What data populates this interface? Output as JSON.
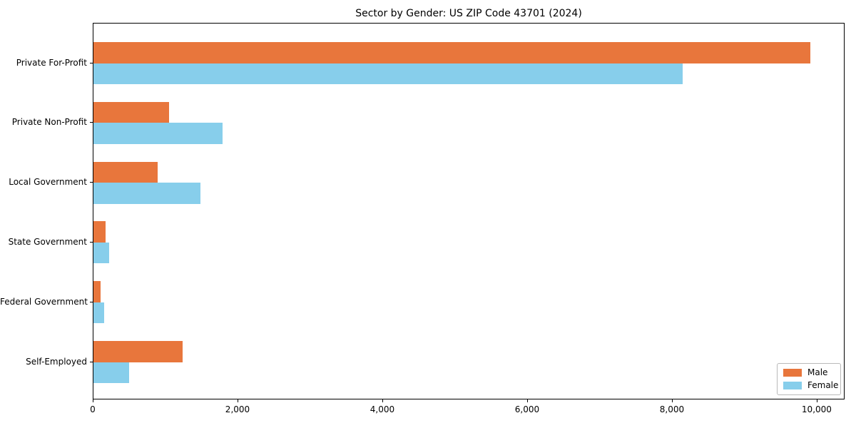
{
  "chart_data": {
    "type": "bar",
    "orientation": "horizontal",
    "title": "Sector by Gender: US ZIP Code 43701 (2024)",
    "categories": [
      "Private For-Profit",
      "Private Non-Profit",
      "Local Government",
      "State Government",
      "Federal Government",
      "Self-Employed"
    ],
    "series": [
      {
        "name": "Male",
        "color": "#e8763c",
        "values": [
          9900,
          1040,
          890,
          170,
          95,
          1230
        ]
      },
      {
        "name": "Female",
        "color": "#87ceeb",
        "values": [
          8140,
          1780,
          1480,
          215,
          150,
          490
        ]
      }
    ],
    "xlabel": "",
    "ylabel": "",
    "x_ticks": [
      "0",
      "2,000",
      "4,000",
      "6,000",
      "8,000",
      "10,000"
    ],
    "x_tick_values": [
      0,
      2000,
      4000,
      6000,
      8000,
      10000
    ],
    "xlim": [
      0,
      10385
    ],
    "grid": false,
    "legend_position": "lower right",
    "legend_border_color": "#b9b9b9",
    "axis_color": "#000000"
  }
}
